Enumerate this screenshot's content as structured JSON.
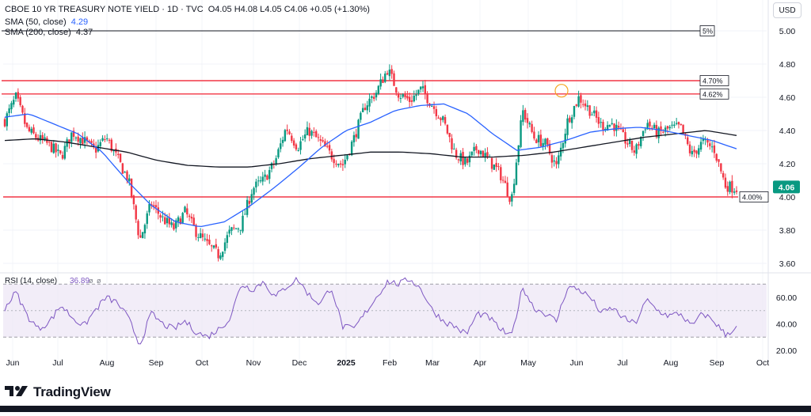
{
  "header": {
    "symbol": "CBOE 10 YR TREASURY NOTE YIELD · 1D · TVC",
    "ohlc": "O4.05 H4.08 L4.05 C4.06 +0.05 (+1.30%)",
    "sma50_label": "SMA (50, close)",
    "sma50_value": "4.29",
    "sma200_label": "SMA (200, close)",
    "sma200_value": "4.37"
  },
  "currency_button": "USD",
  "logo_text": "TradingView",
  "colors": {
    "up": "#089981",
    "down": "#f23645",
    "sma50": "#2962ff",
    "sma200": "#131722",
    "rsi": "#7e57c2",
    "rsi_band": "#ede7f6",
    "resistance": "#f23645"
  },
  "chart_data": [
    {
      "type": "candlestick",
      "title": "CBOE 10 YR TREASURY NOTE YIELD",
      "ylim": [
        3.56,
        5.06
      ],
      "yticks": [
        "3.60",
        "3.80",
        "4.00",
        "4.20",
        "4.40",
        "4.60",
        "4.80",
        "5.00"
      ],
      "xtick_labels": [
        "Jun",
        "Jul",
        "Aug",
        "Sep",
        "Oct",
        "Nov",
        "Dec",
        "2025",
        "Feb",
        "Mar",
        "Apr",
        "May",
        "Jun",
        "Jul",
        "Aug",
        "Sep",
        "Oct"
      ],
      "last_price": "4.06",
      "candles_count": 330,
      "close_path": [
        4.46,
        4.6,
        4.4,
        4.35,
        4.31,
        4.24,
        4.39,
        4.34,
        4.28,
        4.36,
        4.23,
        4.1,
        3.74,
        3.96,
        3.87,
        3.81,
        3.91,
        3.79,
        3.71,
        3.65,
        3.79,
        3.83,
        4.05,
        4.1,
        4.21,
        4.42,
        4.3,
        4.4,
        4.33,
        4.25,
        4.19,
        4.35,
        4.55,
        4.63,
        4.77,
        4.62,
        4.58,
        4.65,
        4.55,
        4.45,
        4.26,
        4.2,
        4.3,
        4.22,
        4.14,
        3.98,
        4.52,
        4.36,
        4.32,
        4.18,
        4.46,
        4.6,
        4.52,
        4.43,
        4.44,
        4.35,
        4.27,
        4.45,
        4.38,
        4.41,
        4.42,
        4.25,
        4.33,
        4.29,
        4.07,
        4.05
      ],
      "sma50_path": [
        4.48,
        4.5,
        4.44,
        4.38,
        4.27,
        4.1,
        3.95,
        3.85,
        3.82,
        3.85,
        3.94,
        4.05,
        4.17,
        4.3,
        4.4,
        4.45,
        4.52,
        4.55,
        4.56,
        4.5,
        4.38,
        4.28,
        4.3,
        4.34,
        4.39,
        4.41,
        4.42,
        4.4,
        4.37,
        4.34,
        4.29
      ],
      "sma200_path": [
        4.34,
        4.35,
        4.33,
        4.3,
        4.27,
        4.22,
        4.19,
        4.18,
        4.18,
        4.2,
        4.23,
        4.25,
        4.27,
        4.27,
        4.26,
        4.24,
        4.24,
        4.25,
        4.27,
        4.3,
        4.33,
        4.36,
        4.38,
        4.4,
        4.37
      ],
      "levels": [
        {
          "value": 5.0,
          "label": "5%",
          "style": "dark"
        },
        {
          "value": 4.7,
          "label": "4.70%",
          "style": "red"
        },
        {
          "value": 4.62,
          "label": "4.62%",
          "style": "red"
        },
        {
          "value": 4.0,
          "label": "4.00%",
          "style": "red"
        }
      ],
      "annotation": {
        "type": "circle",
        "value": 4.63,
        "near": "May"
      }
    },
    {
      "type": "line",
      "title": "RSI (14, close)",
      "series_name": "RSI",
      "value_label": "36.89",
      "extra_labels": [
        "ø",
        "ø"
      ],
      "ylim": [
        18,
        76
      ],
      "yticks": [
        "20.00",
        "40.00",
        "60.00"
      ],
      "band": [
        30,
        70
      ],
      "midline": 50,
      "values_path": [
        52,
        64,
        46,
        36,
        42,
        54,
        45,
        38,
        50,
        60,
        56,
        44,
        24,
        48,
        40,
        36,
        42,
        34,
        30,
        36,
        44,
        70,
        66,
        72,
        60,
        68,
        74,
        62,
        55,
        68,
        38,
        36,
        48,
        60,
        72,
        70,
        74,
        66,
        50,
        42,
        38,
        32,
        48,
        45,
        36,
        30,
        68,
        52,
        48,
        42,
        68,
        66,
        60,
        48,
        52,
        44,
        40,
        58,
        50,
        46,
        48,
        38,
        48,
        42,
        32,
        37
      ]
    }
  ]
}
